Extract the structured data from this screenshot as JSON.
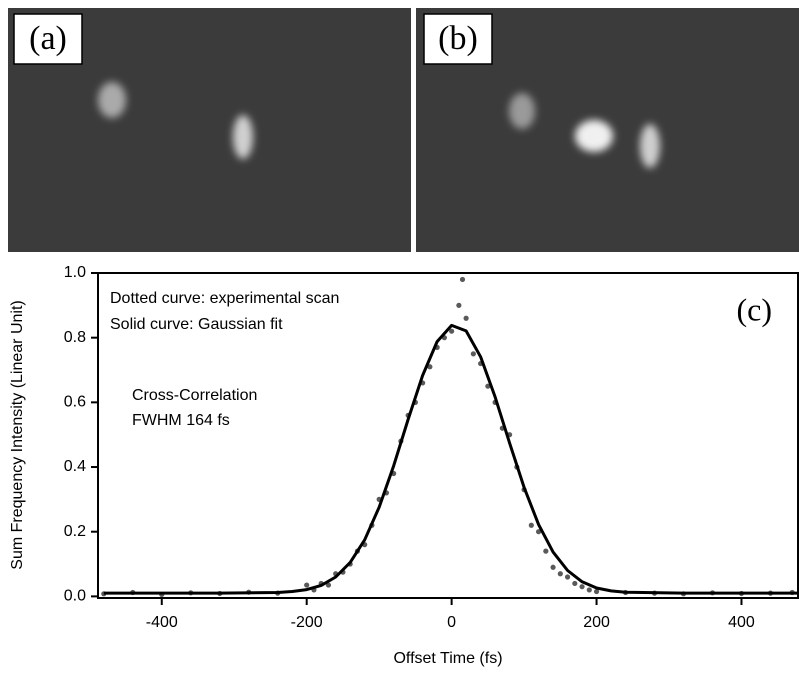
{
  "panels": {
    "a": "(a)",
    "b": "(b)"
  },
  "chart_data": {
    "type": "line",
    "panel_label": "(c)",
    "x_label": "Offset Time (fs)",
    "y_label": "Sum Frequency Intensity (Linear Unit)",
    "annotations": [
      "Dotted curve: experimental scan",
      "Solid curve: Gaussian fit",
      "Cross-Correlation",
      "FWHM 164 fs"
    ],
    "xlim": [
      -488,
      478
    ],
    "ylim": [
      -0.005,
      1.0
    ],
    "xticks": [
      -400,
      -200,
      0,
      200,
      400
    ],
    "yticks": [
      {
        "value": 0,
        "label": "0.0"
      },
      0.2,
      0.4,
      0.6,
      0.8,
      {
        "value": 1,
        "label": "1.0"
      }
    ],
    "series": [
      {
        "style": "dots",
        "color": "#5a5a5a",
        "x": [
          -480,
          -440,
          -400,
          -360,
          -320,
          -280,
          -240,
          -200,
          -190,
          -180,
          -170,
          -160,
          -150,
          -140,
          -130,
          -120,
          -110,
          -100,
          -90,
          -80,
          -70,
          -60,
          -50,
          -40,
          -30,
          -20,
          -10,
          0,
          10,
          15,
          20,
          30,
          40,
          50,
          60,
          70,
          80,
          90,
          100,
          110,
          120,
          130,
          140,
          150,
          160,
          170,
          180,
          190,
          200,
          240,
          280,
          320,
          360,
          400,
          440,
          470
        ],
        "values": [
          0.008,
          0.012,
          0.006,
          0.011,
          0.009,
          0.013,
          0.01,
          0.035,
          0.02,
          0.04,
          0.035,
          0.07,
          0.075,
          0.1,
          0.14,
          0.16,
          0.22,
          0.3,
          0.32,
          0.38,
          0.48,
          0.56,
          0.6,
          0.66,
          0.71,
          0.77,
          0.8,
          0.82,
          0.9,
          0.98,
          0.86,
          0.75,
          0.72,
          0.65,
          0.6,
          0.52,
          0.5,
          0.4,
          0.33,
          0.22,
          0.2,
          0.14,
          0.09,
          0.07,
          0.06,
          0.04,
          0.03,
          0.02,
          0.015,
          0.012,
          0.01,
          0.008,
          0.011,
          0.009,
          0.01,
          0.012
        ]
      },
      {
        "style": "line",
        "color": "#000000",
        "x": [
          -480,
          -400,
          -320,
          -240,
          -220,
          -200,
          -180,
          -160,
          -140,
          -120,
          -100,
          -80,
          -60,
          -40,
          -20,
          0,
          20,
          40,
          60,
          80,
          100,
          120,
          140,
          160,
          180,
          200,
          220,
          240,
          320,
          400,
          478
        ],
        "values": [
          0.01,
          0.01,
          0.01,
          0.012,
          0.015,
          0.021,
          0.034,
          0.06,
          0.105,
          0.175,
          0.276,
          0.404,
          0.547,
          0.683,
          0.788,
          0.838,
          0.821,
          0.741,
          0.617,
          0.474,
          0.337,
          0.222,
          0.137,
          0.08,
          0.045,
          0.026,
          0.017,
          0.013,
          0.01,
          0.01,
          0.01
        ]
      }
    ]
  }
}
